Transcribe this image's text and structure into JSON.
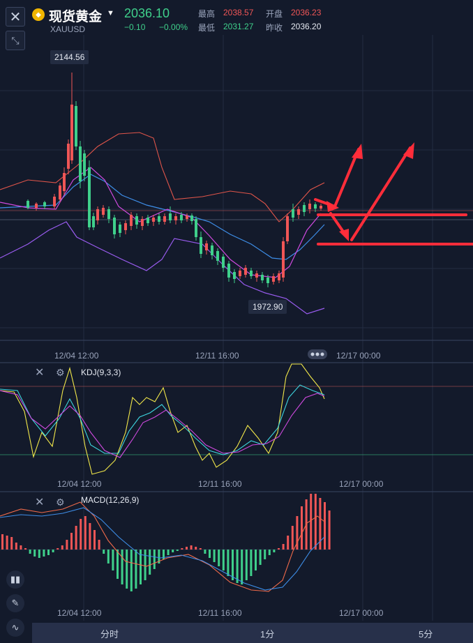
{
  "header": {
    "title": "现货黄金",
    "symbol": "XAUUSD",
    "price": "2036.10",
    "change": "−0.10",
    "change_pct": "−0.00%",
    "high_label": "最高",
    "high_value": "2038.57",
    "open_label": "开盘",
    "open_value": "2036.23",
    "low_label": "最低",
    "low_value": "2031.27",
    "prev_label": "昨收",
    "prev_value": "2036.20"
  },
  "main_chart": {
    "max_tag": "2144.56",
    "min_tag": "1972.90",
    "x_labels": [
      "12/04 12:00",
      "12/11 16:00",
      "12/17 00:00"
    ]
  },
  "kdj": {
    "label": "KDJ(9,3,3)",
    "x_labels": [
      "12/04 12:00",
      "12/11 16:00",
      "12/17 00:00"
    ]
  },
  "macd": {
    "label": "MACD(12,26,9)",
    "x_labels": [
      "12/04 12:00",
      "12/11 16:00",
      "12/17 00:00"
    ]
  },
  "bottom_tabs": [
    "分时",
    "1分",
    "5分"
  ],
  "colors": {
    "bg": "#131a2b",
    "up": "#f05656",
    "down": "#3fd08b",
    "annotation": "#ff2d3a"
  },
  "icons": {
    "close": "close-icon",
    "collapse": "collapse-icon",
    "gold": "gold-coin-icon",
    "candle_tool": "candlestick-icon",
    "draw_tool": "pencil-icon",
    "indicator_tool": "indicator-icon"
  }
}
